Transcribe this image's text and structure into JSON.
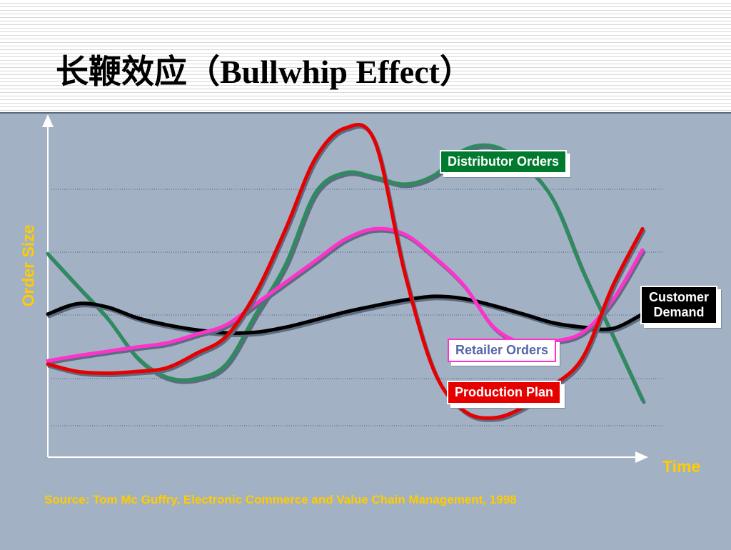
{
  "chart_data": {
    "type": "line",
    "title": "长鞭效应（Bullwhip Effect）",
    "y_label": "Order Size",
    "x_label": "Time",
    "source": "Source: Tom Mc Guffry, Electronic Commerce and Value Chain Management, 1998",
    "xlim": [
      0,
      100
    ],
    "ylim": [
      0,
      100
    ],
    "x": [
      0,
      5,
      10,
      15,
      20,
      25,
      30,
      35,
      40,
      45,
      50,
      55,
      60,
      65,
      70,
      75,
      80,
      85,
      90,
      95,
      100
    ],
    "series": [
      {
        "name": "Distributor Orders",
        "color": "#2e8b5e",
        "values": [
          60.6,
          51,
          41.5,
          29.8,
          23.8,
          23.4,
          27.7,
          42.6,
          57.4,
          78.7,
          84.7,
          83.4,
          81.3,
          84,
          91.5,
          92.6,
          87.2,
          76.6,
          55.3,
          36.2,
          17
        ]
      },
      {
        "name": "Customer Demand",
        "color": "#000000",
        "values": [
          42.6,
          45.7,
          44.7,
          41.5,
          39.4,
          37.9,
          37,
          37.2,
          38.7,
          40.9,
          43.2,
          45.1,
          46.8,
          47.9,
          47.2,
          45.1,
          42.6,
          40,
          38.7,
          38.3,
          42.6
        ]
      },
      {
        "name": "Retailer Orders",
        "color": "#ff33cc",
        "values": [
          28.7,
          30.2,
          31.5,
          32.8,
          34,
          36.6,
          39.4,
          45.7,
          52.1,
          58.5,
          64.9,
          68,
          66.4,
          59.6,
          51.1,
          38.7,
          34,
          34.5,
          37.2,
          46.8,
          61.7
        ]
      },
      {
        "name": "Production Plan",
        "color": "#e60000",
        "values": [
          27.7,
          25.5,
          25,
          25.5,
          26.6,
          30.9,
          36,
          49,
          68,
          89,
          98,
          94,
          55,
          25.5,
          13.8,
          11.7,
          14.9,
          21.3,
          29.8,
          51,
          68
        ]
      }
    ]
  }
}
